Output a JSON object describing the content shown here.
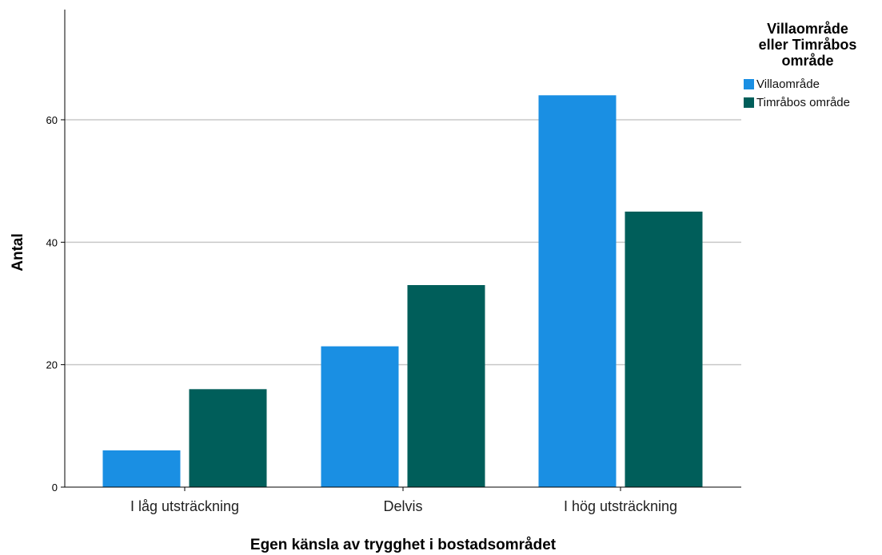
{
  "chart_data": {
    "type": "bar",
    "xlabel": "Egen känsla av trygghet i bostadsområdet",
    "ylabel": "Antal",
    "categories": [
      "I låg utsträckning",
      "Delvis",
      "I hög utsträckning"
    ],
    "series": [
      {
        "name": "Villaområde",
        "color": "#1a8fe3",
        "values": [
          6,
          23,
          64
        ]
      },
      {
        "name": "Timråbos område",
        "color": "#005e5a",
        "values": [
          16,
          33,
          45
        ]
      }
    ],
    "ylim": [
      0,
      75
    ],
    "yticks": [
      0,
      20,
      40,
      60
    ],
    "grid": true,
    "legend": {
      "title_lines": [
        "Villaområde",
        "eller Timråbos",
        "område"
      ],
      "position": "top-right"
    }
  }
}
